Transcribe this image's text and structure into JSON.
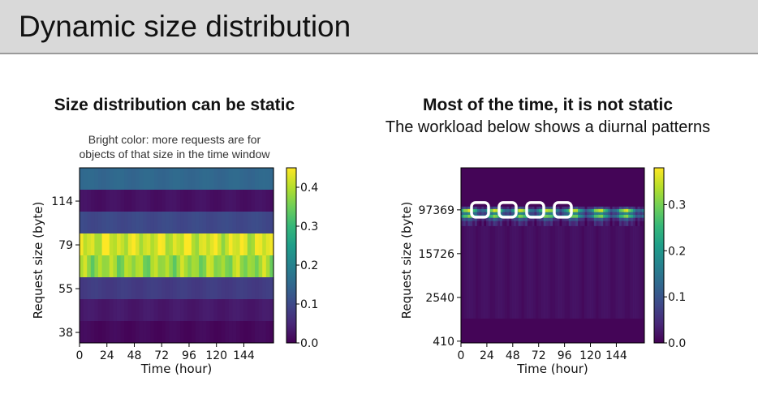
{
  "slide": {
    "title": "Dynamic size distribution"
  },
  "left": {
    "heading": "Size distribution can be static",
    "note_line1": "Bright color: more requests are for",
    "note_line2": "objects of that size in the time window"
  },
  "right": {
    "heading": "Most of the time, it is not static",
    "subheading": "The workload below shows a diurnal patterns"
  },
  "colors": {
    "highlight_box": "#ffffff"
  },
  "chart_data": [
    {
      "type": "heatmap",
      "title": "",
      "xlabel": "Time (hour)",
      "ylabel": "Request size (byte)",
      "x_ticks": [
        "0",
        "24",
        "48",
        "72",
        "96",
        "120",
        "144"
      ],
      "y_ticks": [
        "114",
        "79",
        "55",
        "38"
      ],
      "colorbar_ticks": [
        "0.4",
        "0.3",
        "0.2",
        "0.1",
        "0.0"
      ],
      "colorbar_range": [
        0,
        0.45
      ],
      "band_values_top_to_bottom": [
        0.15,
        0.02,
        0.1,
        0.42,
        0.38,
        0.08,
        0.03,
        0.01
      ],
      "colormap": "viridis"
    },
    {
      "type": "heatmap",
      "title": "",
      "xlabel": "Time (hour)",
      "ylabel": "Request size (byte)",
      "x_ticks": [
        "0",
        "24",
        "48",
        "72",
        "96",
        "120",
        "144"
      ],
      "y_ticks": [
        "97369",
        "15726",
        "2540",
        "410"
      ],
      "colorbar_ticks": [
        "0.3",
        "0.2",
        "0.1",
        "0.0"
      ],
      "colorbar_range": [
        0,
        0.38
      ],
      "colormap": "viridis",
      "highlighted_windows": 4
    }
  ]
}
